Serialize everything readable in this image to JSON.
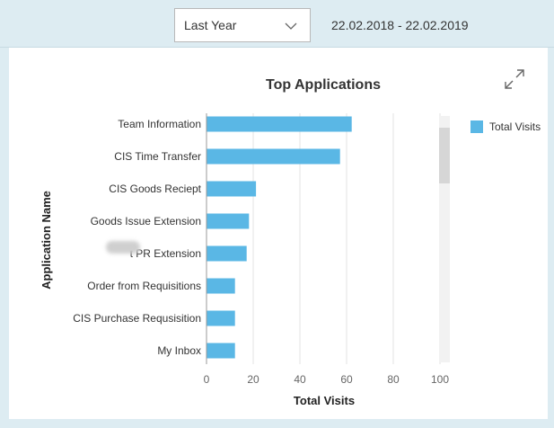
{
  "header": {
    "period": "Last Year",
    "date_range": "22.02.2018 - 22.02.2019"
  },
  "icons": {
    "dropdown": "chevron-down-icon",
    "expand": "expand-icon"
  },
  "chart_data": {
    "type": "bar",
    "orientation": "horizontal",
    "title": "Top Applications",
    "xlabel": "Total Visits",
    "ylabel": "Application Name",
    "xlim": [
      0,
      100
    ],
    "xticks": [
      0,
      20,
      40,
      60,
      80,
      100
    ],
    "grid": true,
    "legend_position": "top-right",
    "categories": [
      "Team Information",
      "CIS Time Transfer",
      "CIS Goods Reciept",
      "Goods Issue Extension",
      "t PR Extension",
      "Order from Requisitions",
      "CIS Purchase Requsisition",
      "My Inbox"
    ],
    "series": [
      {
        "name": "Total Visits",
        "color": "#5ab7e5",
        "values": [
          62,
          57,
          21,
          18,
          17,
          12,
          12,
          12
        ]
      }
    ]
  }
}
